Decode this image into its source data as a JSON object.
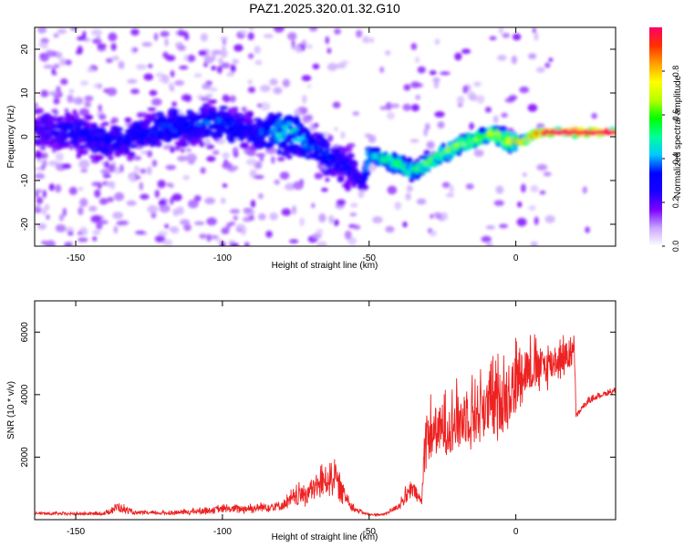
{
  "figure_title": "PAZ1.2025.320.01.32.G10",
  "colorbar": {
    "label": "Normalized spectral amplitude",
    "ticks": [
      "0.0",
      "0.2",
      "0.4",
      "0.6",
      "0.8"
    ],
    "tick_values": [
      0.0,
      0.2,
      0.4,
      0.6,
      0.8
    ],
    "range": [
      0.0,
      1.0
    ],
    "colors": [
      "#ffffff",
      "#c9a6ff",
      "#7a00ff",
      "#1800ff",
      "#0000ff",
      "#00c8ff",
      "#00ff9a",
      "#00ff00",
      "#b6ff00",
      "#ffff00",
      "#ffa000",
      "#ff3000",
      "#ff0066"
    ]
  },
  "chart_data": [
    {
      "type": "heatmap",
      "title": "PAZ1.2025.320.01.32.G10",
      "xlabel": "Height of straight line (km)",
      "ylabel": "Frequency (Hz)",
      "xlim": [
        -164,
        34
      ],
      "ylim": [
        -25,
        25
      ],
      "xticks": [
        -150,
        -100,
        -50,
        0
      ],
      "yticks": [
        -20,
        -10,
        0,
        10,
        20
      ],
      "xtick_labels": [
        "-150",
        "-100",
        "-50",
        "0"
      ],
      "ytick_labels": [
        "-20",
        "-10",
        "0",
        "10",
        "20"
      ],
      "ridge": {
        "description": "frequency of the dominant spectral peak vs height",
        "x": [
          -164,
          -150,
          -140,
          -130,
          -120,
          -110,
          -100,
          -90,
          -80,
          -75,
          -70,
          -65,
          -60,
          -55,
          -52,
          -50,
          -45,
          -40,
          -35,
          -30,
          -25,
          -20,
          -15,
          -10,
          -8,
          -5,
          -3,
          0,
          3,
          5,
          8,
          10,
          20,
          34
        ],
        "y": [
          2,
          1,
          -1,
          0,
          2,
          3,
          3,
          1,
          1,
          1,
          -2,
          -4,
          -6,
          -8,
          -11,
          -4,
          -5,
          -6,
          -8,
          -6,
          -4,
          -2,
          -1,
          0,
          1,
          0,
          -1,
          -1,
          -1,
          0,
          1,
          1,
          1,
          1
        ],
        "amplitude": [
          0.25,
          0.3,
          0.3,
          0.3,
          0.35,
          0.35,
          0.35,
          0.3,
          0.45,
          0.45,
          0.35,
          0.35,
          0.3,
          0.3,
          0.3,
          0.45,
          0.55,
          0.55,
          0.55,
          0.6,
          0.65,
          0.65,
          0.65,
          0.65,
          0.7,
          0.7,
          0.75,
          0.8,
          0.85,
          0.9,
          0.95,
          1.0,
          1.0,
          1.0
        ]
      },
      "colorbar_label": "Normalized spectral amplitude",
      "colorbar_range": [
        0.0,
        1.0
      ]
    },
    {
      "type": "line",
      "title": "",
      "xlabel": "Height of straight line (km)",
      "ylabel": "SNR (10 * v/v)",
      "xlim": [
        -164,
        34
      ],
      "ylim": [
        0,
        7000
      ],
      "xticks": [
        -150,
        -100,
        -50,
        0
      ],
      "yticks": [
        2000,
        4000,
        6000
      ],
      "xtick_labels": [
        "-150",
        "-100",
        "-50",
        "0"
      ],
      "ytick_labels": [
        "2000",
        "4000",
        "6000"
      ],
      "color": "#ee2222",
      "series": [
        {
          "name": "SNR",
          "x": [
            -164,
            -160,
            -150,
            -140,
            -136,
            -130,
            -120,
            -110,
            -100,
            -90,
            -80,
            -75,
            -70,
            -65,
            -62,
            -60,
            -55,
            -50,
            -45,
            -40,
            -37,
            -35,
            -32,
            -31,
            -30,
            -28,
            -25,
            -20,
            -15,
            -10,
            -5,
            0,
            2,
            5,
            10,
            15,
            18,
            20,
            20.5,
            25,
            30,
            34
          ],
          "base": [
            200,
            180,
            170,
            180,
            350,
            200,
            190,
            230,
            300,
            320,
            400,
            600,
            800,
            1100,
            1300,
            900,
            300,
            150,
            150,
            400,
            700,
            900,
            500,
            2500,
            2400,
            2600,
            2600,
            2900,
            3100,
            3300,
            3500,
            4000,
            4600,
            4600,
            4700,
            5000,
            5100,
            5200,
            3300,
            3800,
            4000,
            4100
          ],
          "spread": [
            80,
            80,
            80,
            90,
            300,
            90,
            100,
            150,
            200,
            250,
            300,
            500,
            700,
            900,
            1000,
            700,
            150,
            60,
            60,
            200,
            500,
            500,
            300,
            1600,
            1600,
            1500,
            1500,
            1600,
            1800,
            1800,
            1900,
            2000,
            1600,
            1400,
            1200,
            1000,
            900,
            800,
            150,
            150,
            150,
            150
          ]
        }
      ]
    }
  ]
}
